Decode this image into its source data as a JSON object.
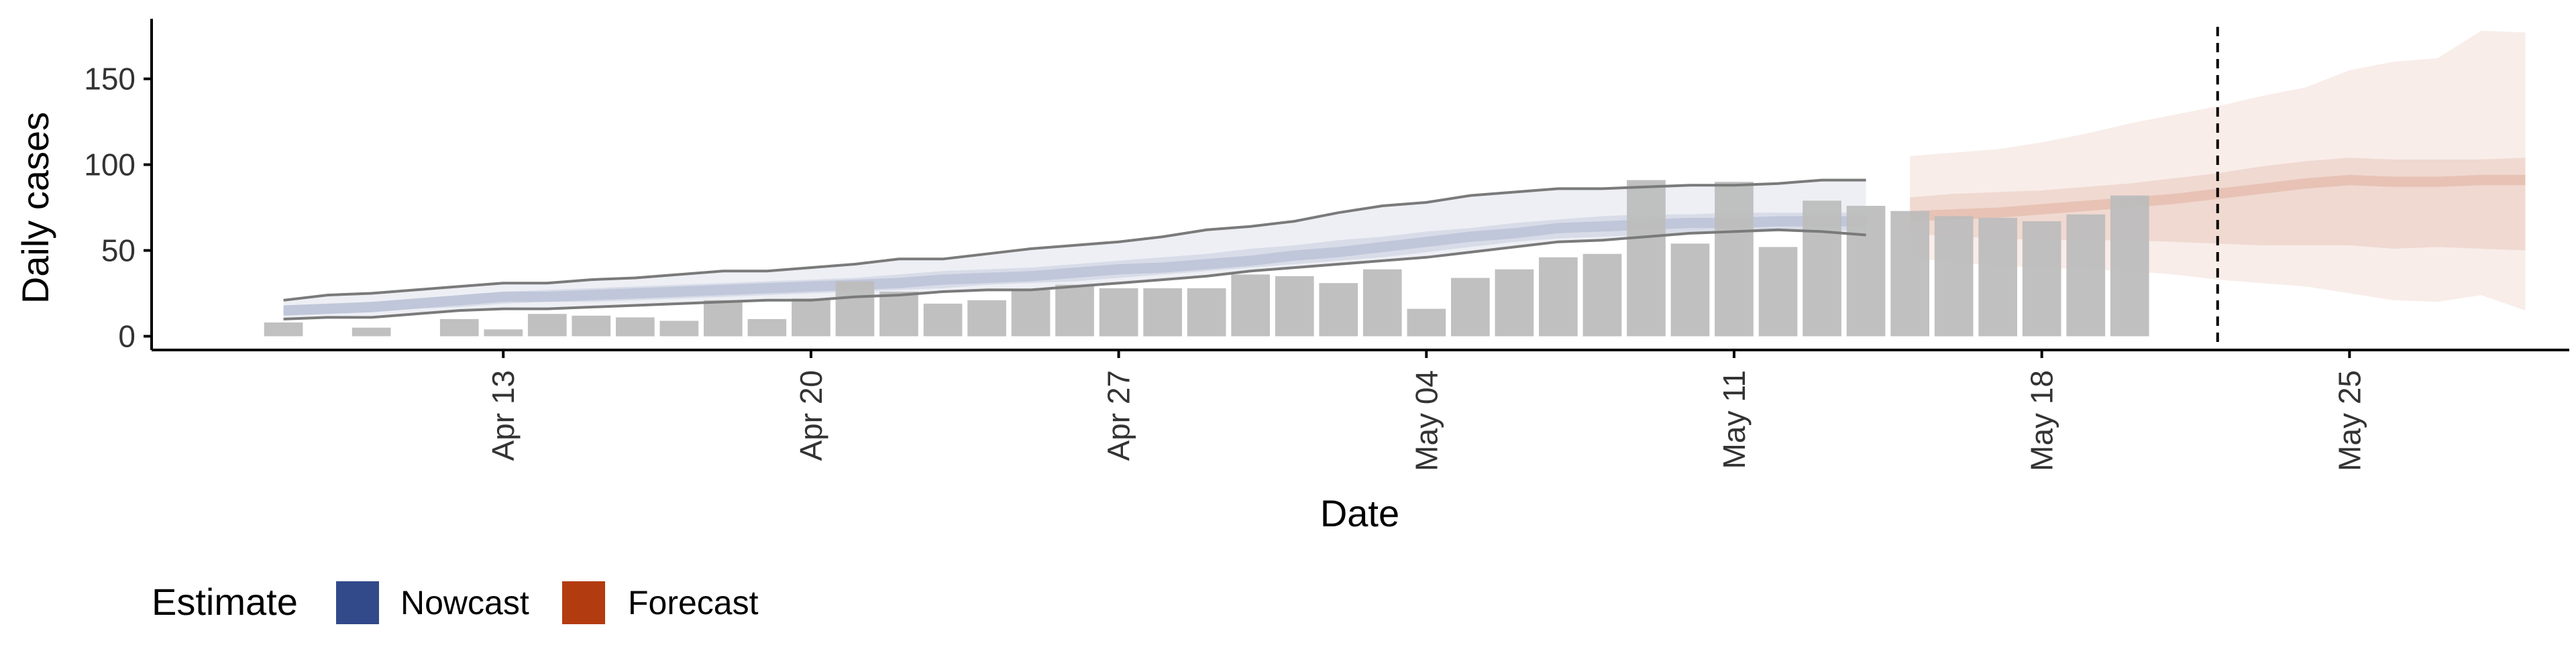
{
  "chart_data": {
    "type": "bar",
    "xlabel": "Date",
    "ylabel": "Daily cases",
    "x_tick_labels": [
      "Apr 13",
      "Apr 20",
      "Apr 27",
      "May 04",
      "May 11",
      "May 18",
      "May 25"
    ],
    "x_tick_dates": [
      "2020-04-13",
      "2020-04-20",
      "2020-04-27",
      "2020-05-04",
      "2020-05-11",
      "2020-05-18",
      "2020-05-25"
    ],
    "xlim": [
      "2020-04-05",
      "2020-05-30"
    ],
    "ylim": [
      -8,
      185
    ],
    "y_ticks": [
      0,
      50,
      100,
      150
    ],
    "grid": false,
    "observed_cases": {
      "dates": [
        "2020-04-08",
        "2020-04-10",
        "2020-04-12",
        "2020-04-13",
        "2020-04-14",
        "2020-04-15",
        "2020-04-16",
        "2020-04-17",
        "2020-04-18",
        "2020-04-19",
        "2020-04-20",
        "2020-04-21",
        "2020-04-22",
        "2020-04-23",
        "2020-04-24",
        "2020-04-25",
        "2020-04-26",
        "2020-04-27",
        "2020-04-28",
        "2020-04-29",
        "2020-04-30",
        "2020-05-01",
        "2020-05-02",
        "2020-05-03",
        "2020-05-04",
        "2020-05-05",
        "2020-05-06",
        "2020-05-07",
        "2020-05-08",
        "2020-05-09",
        "2020-05-10",
        "2020-05-11",
        "2020-05-12",
        "2020-05-13",
        "2020-05-14",
        "2020-05-15",
        "2020-05-16",
        "2020-05-17",
        "2020-05-18",
        "2020-05-19",
        "2020-05-20",
        "2020-05-21",
        "2020-05-22",
        "2020-05-23"
      ],
      "values": [
        8,
        5,
        10,
        4,
        13,
        12,
        11,
        9,
        21,
        10,
        22,
        32,
        26,
        19,
        21,
        27,
        30,
        28,
        28,
        28,
        36,
        35,
        31,
        39,
        16,
        34,
        39,
        46,
        48,
        91,
        54,
        90,
        52,
        79,
        76,
        73,
        70,
        69,
        67,
        71,
        82,
        0,
        0,
        0
      ]
    },
    "series": [
      {
        "name": "Nowcast",
        "color": "#32498a",
        "dates": [
          "2020-04-08",
          "2020-04-09",
          "2020-04-10",
          "2020-04-11",
          "2020-04-12",
          "2020-04-13",
          "2020-04-14",
          "2020-04-15",
          "2020-04-16",
          "2020-04-17",
          "2020-04-18",
          "2020-04-19",
          "2020-04-20",
          "2020-04-21",
          "2020-04-22",
          "2020-04-23",
          "2020-04-24",
          "2020-04-25",
          "2020-04-26",
          "2020-04-27",
          "2020-04-28",
          "2020-04-29",
          "2020-04-30",
          "2020-05-01",
          "2020-05-02",
          "2020-05-03",
          "2020-05-04",
          "2020-05-05",
          "2020-05-06",
          "2020-05-07",
          "2020-05-08",
          "2020-05-09",
          "2020-05-10",
          "2020-05-11",
          "2020-05-12",
          "2020-05-13",
          "2020-05-14"
        ],
        "median": [
          15,
          16,
          17,
          19,
          21,
          23,
          23,
          24,
          25,
          26,
          27,
          28,
          29,
          30,
          31,
          33,
          34,
          35,
          37,
          39,
          40,
          42,
          44,
          47,
          49,
          52,
          55,
          58,
          60,
          63,
          64,
          65,
          66,
          66,
          67,
          67,
          67
        ],
        "lower_50": [
          12,
          13,
          14,
          16,
          17,
          19,
          20,
          20,
          21,
          22,
          23,
          24,
          25,
          26,
          27,
          28,
          30,
          31,
          32,
          34,
          36,
          38,
          40,
          42,
          44,
          46,
          49,
          52,
          55,
          57,
          58,
          59,
          60,
          60,
          61,
          61,
          62
        ],
        "upper_50": [
          18,
          19,
          20,
          22,
          24,
          26,
          27,
          28,
          29,
          30,
          31,
          32,
          33,
          34,
          36,
          38,
          39,
          40,
          42,
          44,
          46,
          48,
          51,
          53,
          56,
          58,
          61,
          63,
          66,
          68,
          70,
          71,
          71,
          72,
          72,
          72,
          72
        ],
        "lower_90": [
          10,
          11,
          11,
          13,
          15,
          16,
          16,
          17,
          18,
          19,
          20,
          21,
          21,
          23,
          24,
          26,
          27,
          27,
          29,
          31,
          33,
          35,
          38,
          40,
          42,
          44,
          46,
          49,
          52,
          55,
          56,
          58,
          60,
          61,
          62,
          61,
          59
        ],
        "upper_90": [
          21,
          24,
          25,
          27,
          29,
          31,
          31,
          33,
          34,
          36,
          38,
          38,
          40,
          42,
          45,
          45,
          48,
          51,
          53,
          55,
          58,
          62,
          64,
          67,
          72,
          76,
          78,
          82,
          84,
          86,
          86,
          87,
          88,
          88,
          89,
          91,
          91
        ]
      },
      {
        "name": "Forecast",
        "color": "#b33b10",
        "dates": [
          "2020-05-15",
          "2020-05-16",
          "2020-05-17",
          "2020-05-18",
          "2020-05-19",
          "2020-05-20",
          "2020-05-21",
          "2020-05-22",
          "2020-05-23",
          "2020-05-24",
          "2020-05-25",
          "2020-05-26",
          "2020-05-27",
          "2020-05-28",
          "2020-05-29"
        ],
        "median": [
          70,
          71,
          72,
          74,
          76,
          78,
          80,
          83,
          86,
          89,
          91,
          90,
          90,
          91,
          91
        ],
        "lower_50": [
          60,
          58,
          57,
          56,
          56,
          56,
          55,
          54,
          53,
          53,
          53,
          51,
          52,
          51,
          50
        ],
        "upper_50": [
          81,
          83,
          84,
          85,
          87,
          89,
          92,
          95,
          99,
          102,
          104,
          103,
          103,
          103,
          104
        ],
        "lower_90": [
          46,
          43,
          41,
          40,
          39,
          38,
          36,
          33,
          31,
          29,
          25,
          21,
          20,
          24,
          15
        ],
        "upper_90": [
          105,
          107,
          109,
          113,
          118,
          124,
          129,
          134,
          140,
          145,
          155,
          160,
          162,
          178,
          177
        ]
      }
    ],
    "vline_date": "2020-05-22",
    "legend": {
      "title": "Estimate",
      "position": "bottom-left",
      "items": [
        {
          "label": "Nowcast",
          "color": "#32498a"
        },
        {
          "label": "Forecast",
          "color": "#b33b10"
        }
      ]
    },
    "colors": {
      "bars": "#bdbdbd",
      "bounds_line": "#7a7a7a",
      "vline": "#000000",
      "axis": "#000000"
    }
  }
}
